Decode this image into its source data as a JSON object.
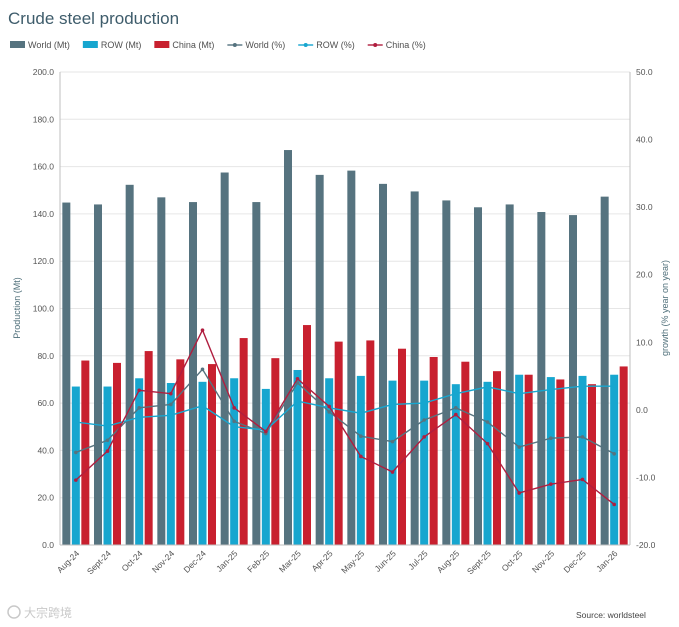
{
  "chart_data": {
    "type": "bar",
    "title": "Crude steel production",
    "categories": [
      "Aug-24",
      "Sept-24",
      "Oct-24",
      "Nov-24",
      "Dec-24",
      "Jan-25",
      "Feb-25",
      "Mar-25",
      "Apr-25",
      "May-25",
      "Jun-25",
      "Jul-25",
      "Aug-25",
      "Sept-25",
      "Oct-25",
      "Nov-25",
      "Dec-25",
      "Jan-26"
    ],
    "ylabel": "Production (Mt)",
    "y2label": "growth (% year on year)",
    "ylim": [
      0,
      200
    ],
    "y2lim": [
      -20,
      50
    ],
    "yticks": [
      "0.0",
      "20.0",
      "40.0",
      "60.0",
      "80.0",
      "100.0",
      "120.0",
      "140.0",
      "160.0",
      "180.0",
      "200.0"
    ],
    "y2ticks": [
      "-20.0",
      "-10.0",
      "0.0",
      "10.0",
      "20.0",
      "30.0",
      "40.0",
      "50.0"
    ],
    "series": [
      {
        "name": "World (Mt)",
        "kind": "bar",
        "axis": "left",
        "color": "#56737f",
        "values": [
          144.8,
          144.0,
          152.3,
          147.0,
          145.0,
          157.5,
          145.0,
          167.0,
          156.5,
          158.3,
          152.7,
          149.5,
          145.7,
          142.8,
          144.0,
          140.8,
          139.5,
          147.3
        ]
      },
      {
        "name": "ROW (Mt)",
        "kind": "bar",
        "axis": "left",
        "color": "#17a6cf",
        "values": [
          67.0,
          67.0,
          70.5,
          68.5,
          69.0,
          70.5,
          66.0,
          74.0,
          70.5,
          71.5,
          69.5,
          69.5,
          68.0,
          69.0,
          72.0,
          71.0,
          71.5,
          72.0
        ]
      },
      {
        "name": "China (Mt)",
        "kind": "bar",
        "axis": "left",
        "color": "#c8202f",
        "values": [
          78.0,
          77.0,
          82.0,
          78.5,
          76.5,
          87.5,
          79.0,
          93.0,
          86.0,
          86.5,
          83.0,
          79.5,
          77.5,
          73.5,
          72.0,
          70.0,
          68.0,
          75.5
        ]
      },
      {
        "name": "World (%)",
        "kind": "line",
        "axis": "right",
        "color": "#56737f",
        "values": [
          -6.3,
          -4.5,
          0.3,
          0.8,
          6.0,
          -1.7,
          -3.5,
          4.0,
          -0.3,
          -3.9,
          -4.7,
          -1.5,
          0.3,
          -1.8,
          -5.5,
          -4.2,
          -4.0,
          -6.5
        ]
      },
      {
        "name": "ROW (%)",
        "kind": "line",
        "axis": "right",
        "color": "#17a6cf",
        "values": [
          -1.8,
          -2.4,
          -1.1,
          -0.8,
          0.6,
          -2.5,
          -3.0,
          1.3,
          0.3,
          -0.5,
          0.8,
          1.0,
          2.4,
          3.4,
          2.4,
          3.0,
          3.5,
          3.5
        ]
      },
      {
        "name": "China (%)",
        "kind": "line",
        "axis": "right",
        "color": "#b01e3f",
        "values": [
          -10.4,
          -6.1,
          2.9,
          2.4,
          11.8,
          0.3,
          -3.2,
          4.6,
          0.5,
          -6.9,
          -9.2,
          -4.0,
          -0.7,
          -5.0,
          -12.3,
          -11.0,
          -10.3,
          -14.0
        ]
      }
    ],
    "legend_position": "top"
  },
  "source_text": "Source: worldsteel",
  "watermark_text": "大宗跨境"
}
